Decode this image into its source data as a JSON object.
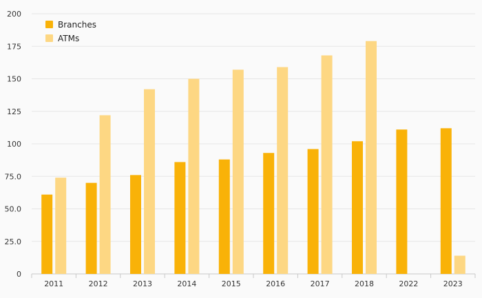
{
  "chart_data": {
    "type": "bar",
    "categories": [
      "2011",
      "2012",
      "2013",
      "2014",
      "2015",
      "2016",
      "2017",
      "2018",
      "2022",
      "2023"
    ],
    "series": [
      {
        "name": "Branches",
        "color": "#f9b208",
        "values": [
          61,
          70,
          76,
          86,
          88,
          93,
          96,
          102,
          111,
          112
        ]
      },
      {
        "name": "ATMs",
        "color": "#fdd783",
        "values": [
          74,
          122,
          142,
          150,
          157,
          159,
          168,
          179,
          null,
          14
        ]
      }
    ],
    "ylim": [
      0,
      200
    ],
    "yticks": [
      0,
      25,
      50,
      75,
      100,
      125,
      150,
      175,
      200
    ],
    "ytick_labels": [
      "0",
      "25.0",
      "50.0",
      "75.0",
      "100",
      "125",
      "150",
      "175",
      "200"
    ],
    "grid": true,
    "legend_position": "top-left",
    "title": "",
    "xlabel": "",
    "ylabel": ""
  }
}
